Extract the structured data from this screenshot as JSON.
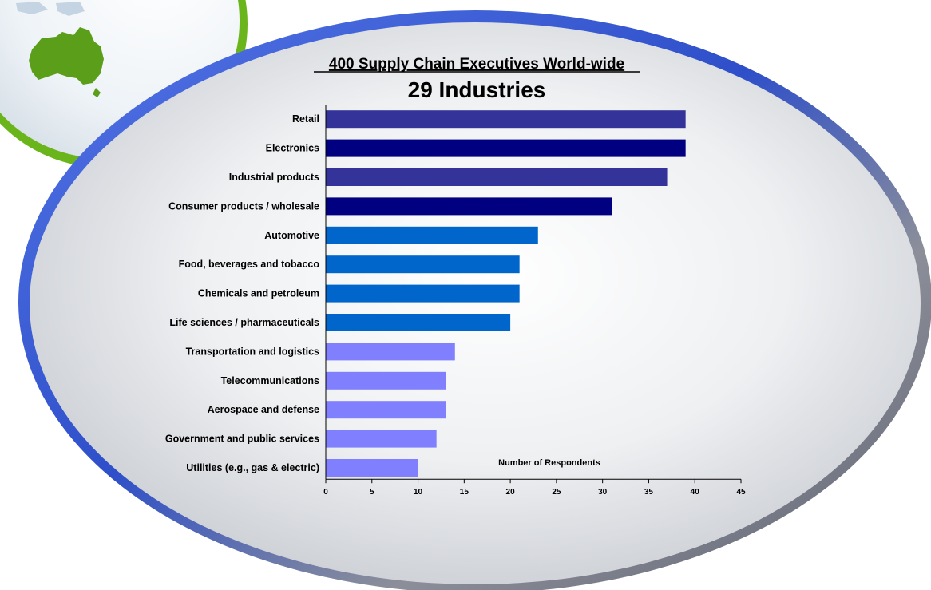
{
  "chart_data": {
    "type": "bar",
    "orientation": "horizontal",
    "title": "400 Supply Chain Executives World-wide",
    "subtitle": "29 Industries",
    "xlabel": "Number of Respondents",
    "ylabel": "",
    "xlim": [
      0,
      45
    ],
    "xticks": [
      0,
      5,
      10,
      15,
      20,
      25,
      30,
      35,
      40,
      45
    ],
    "grid": false,
    "legend": "none",
    "categories": [
      "Retail",
      "Electronics",
      "Industrial products",
      "Consumer products / wholesale",
      "Automotive",
      "Food, beverages and tobacco",
      "Chemicals and petroleum",
      "Life sciences / pharmaceuticals",
      "Transportation and logistics",
      "Telecommunications",
      "Aerospace and defense",
      "Government and public services",
      "Utilities (e.g., gas & electric)"
    ],
    "values": [
      39,
      39,
      37,
      31,
      23,
      21,
      21,
      20,
      14,
      13,
      13,
      12,
      10
    ],
    "bar_colors": [
      "#333399",
      "#000080",
      "#333399",
      "#000080",
      "#0066CC",
      "#0066CC",
      "#0066CC",
      "#0066CC",
      "#8080FF",
      "#8080FF",
      "#8080FF",
      "#8080FF",
      "#8080FF"
    ]
  },
  "decor": {
    "globe_icon": "australia-globe-icon",
    "ellipse_rim_color": "#3c5fd6",
    "land_color": "#5a9e1a",
    "globe_rim_color": "#7cc21f"
  }
}
